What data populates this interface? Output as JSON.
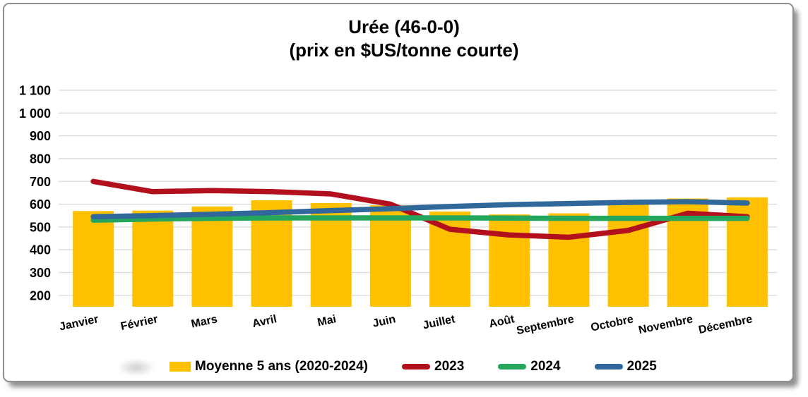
{
  "title": {
    "line1": "Urée (46-0-0)",
    "line2": "(prix en $US/tonne courte)"
  },
  "chart_data": {
    "type": "bar+line combo",
    "categories": [
      "Janvier",
      "Février",
      "Mars",
      "Avril",
      "Mai",
      "Juin",
      "Juillet",
      "Août",
      "Septembre",
      "Octobre",
      "Novembre",
      "Décembre"
    ],
    "series": [
      {
        "name": "Moyenne 5 ans (2020-2024)",
        "type": "bar",
        "color": "#FFC000",
        "values": [
          570,
          572,
          590,
          617,
          605,
          595,
          568,
          555,
          560,
          600,
          625,
          630
        ]
      },
      {
        "name": "2023",
        "type": "line",
        "color": "#B2101C",
        "values": [
          700,
          655,
          660,
          655,
          645,
          600,
          490,
          465,
          455,
          485,
          560,
          545
        ]
      },
      {
        "name": "2024",
        "type": "line",
        "color": "#24A75D",
        "values": [
          530,
          535,
          538,
          540,
          540,
          540,
          540,
          539,
          538,
          538,
          538,
          538
        ]
      },
      {
        "name": "2025",
        "type": "line",
        "color": "#31689B",
        "values": [
          545,
          550,
          556,
          563,
          572,
          580,
          590,
          598,
          603,
          608,
          611,
          605
        ]
      }
    ],
    "y_axis": {
      "min": 150,
      "max": 1100,
      "tick_values": [
        1100,
        1000,
        900,
        800,
        700,
        600,
        500,
        400,
        300,
        200
      ],
      "tick_labels": [
        "1 100",
        "1 000",
        "900",
        "800",
        "700",
        "600",
        "500",
        "400",
        "300",
        "200"
      ]
    },
    "grid": true,
    "gridline_color": "#D9D9D9",
    "legend_position": "bottom",
    "x_label_rotation_deg": -12
  }
}
